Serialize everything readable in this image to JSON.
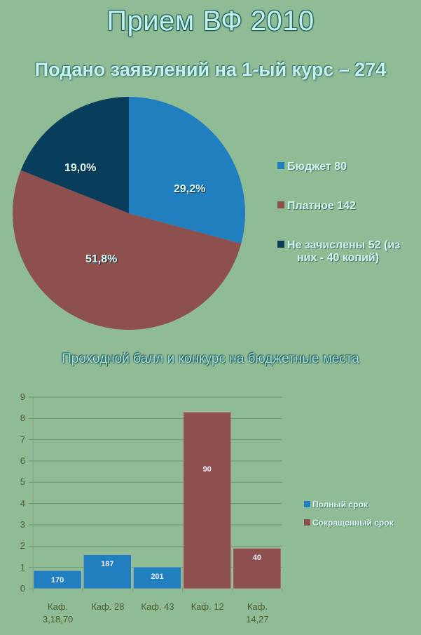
{
  "header": {
    "title": "Прием ВФ 2010",
    "subtitle": "Подано заявлений на 1-ый курс – 274"
  },
  "pie_section": {
    "legend": [
      {
        "label": "Бюджет 80",
        "color": "#1f7fbf"
      },
      {
        "label": "Платное 142",
        "color": "#8e4f4f"
      },
      {
        "label": "Не зачислены 52 (из",
        "label_line2": "них - 40 копий)",
        "color": "#083d5c"
      }
    ],
    "slice_labels": [
      "29,2%",
      "51,8%",
      "19,0%"
    ]
  },
  "bar_section": {
    "title": "Проходной балл и конкурс на бюджетные места",
    "y_ticks": [
      "0",
      "1",
      "2",
      "3",
      "4",
      "5",
      "6",
      "7",
      "8",
      "9"
    ],
    "x_labels": [
      {
        "line1": "Каф.",
        "line2": "3,18,70"
      },
      {
        "line1": "Каф. 28",
        "line2": ""
      },
      {
        "line1": "Каф. 43",
        "line2": ""
      },
      {
        "line1": "Каф. 12",
        "line2": ""
      },
      {
        "line1": "Каф.",
        "line2": "14,27"
      }
    ],
    "bar_labels": [
      "170",
      "187",
      "201",
      "90",
      "40"
    ],
    "legend": [
      {
        "label": "Полный срок",
        "color": "#1f7fbf"
      },
      {
        "label": "Сокращенный срок",
        "color": "#8e4f4f"
      }
    ]
  },
  "chart_data": [
    {
      "type": "pie",
      "title": "Подано заявлений на 1-ый курс – 274",
      "categories": [
        "Бюджет",
        "Платное",
        "Не зачислены"
      ],
      "values": [
        80,
        142,
        52
      ],
      "percentages": [
        29.2,
        51.8,
        19.0
      ],
      "colors": [
        "#1f7fbf",
        "#8e4f4f",
        "#083d5c"
      ],
      "legend_position": "right",
      "annotations": [
        "Не зачислены 52 (из них - 40 копий)"
      ]
    },
    {
      "type": "bar",
      "title": "Проходной балл и конкурс на бюджетные места",
      "categories": [
        "Каф. 3,18,70",
        "Каф. 28",
        "Каф. 43",
        "Каф. 12",
        "Каф. 14,27"
      ],
      "series": [
        {
          "name": "Полный срок",
          "color": "#1f7fbf",
          "values": [
            0.85,
            1.6,
            1.02,
            null,
            null
          ],
          "data_labels": [
            "170",
            "187",
            "201",
            null,
            null
          ]
        },
        {
          "name": "Сокращенный срок",
          "color": "#8e4f4f",
          "values": [
            null,
            null,
            null,
            8.3,
            1.9
          ],
          "data_labels": [
            null,
            null,
            null,
            "90",
            "40"
          ]
        }
      ],
      "xlabel": "",
      "ylabel": "",
      "ylim": [
        0,
        9
      ],
      "grid": true,
      "legend_position": "right"
    }
  ]
}
